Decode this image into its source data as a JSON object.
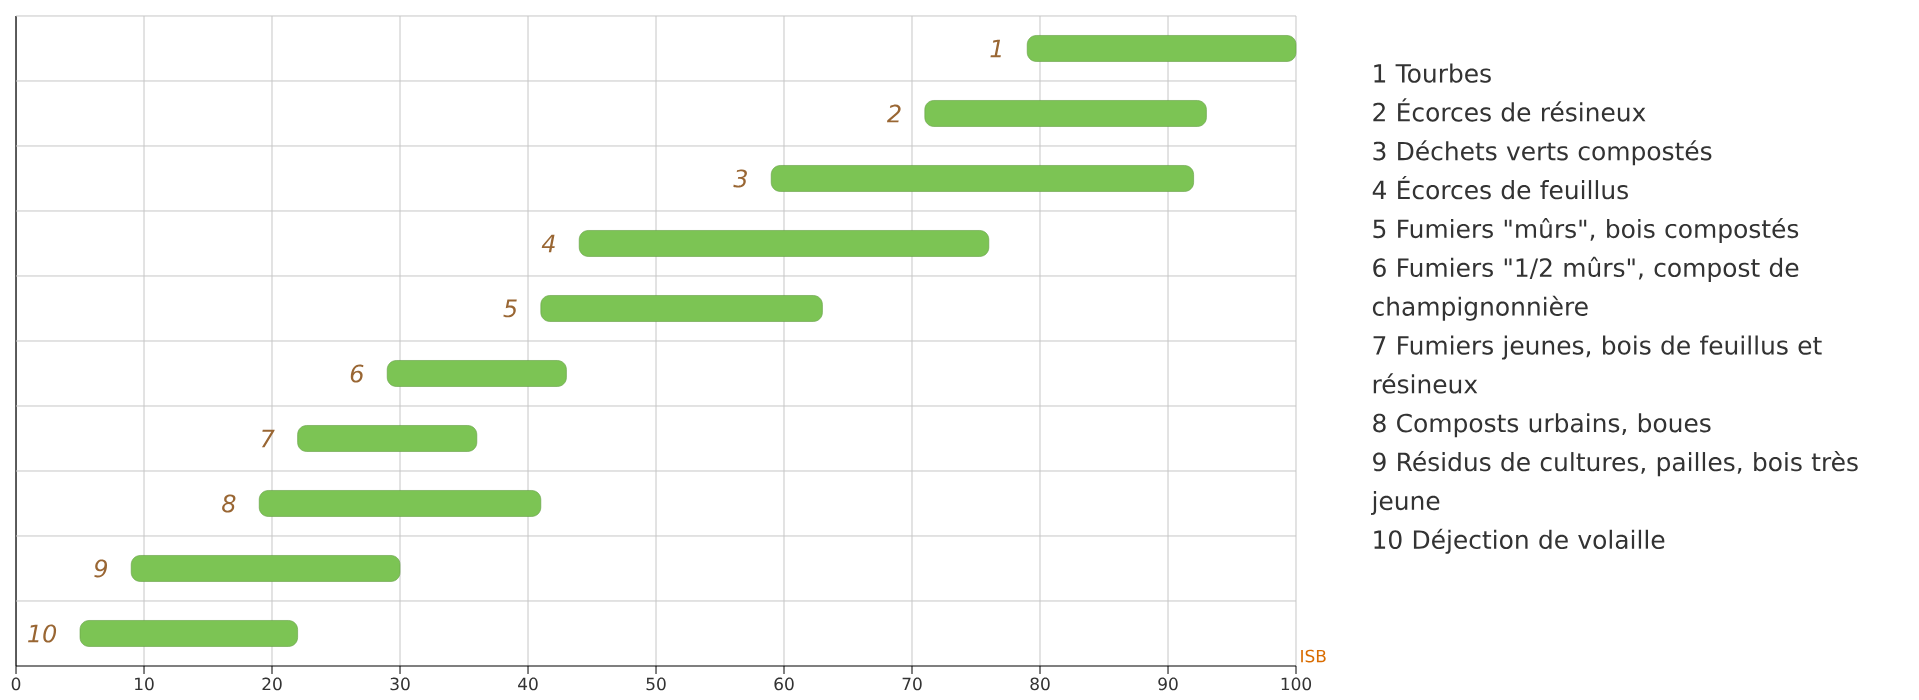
{
  "chart_data": {
    "type": "bar",
    "orientation": "horizontal",
    "categories": [
      "1",
      "2",
      "3",
      "4",
      "5",
      "6",
      "7",
      "8",
      "9",
      "10"
    ],
    "base": [
      79,
      71,
      59,
      44,
      41,
      29,
      22,
      19,
      9,
      5
    ],
    "values": [
      21,
      22,
      33,
      32,
      22,
      14,
      14,
      22,
      21,
      17
    ],
    "color": "#7cc454",
    "xlabel": "ISB",
    "xlim": [
      0,
      100
    ],
    "xticks": [
      0,
      10,
      20,
      30,
      40,
      50,
      60,
      70,
      80,
      90,
      100
    ],
    "grid": true,
    "annotations": [
      "1 Tourbes",
      "2 Écorces de résineux",
      "3 Déchets verts compostés",
      "4 Écorces de feuillus",
      "5 Fumiers \"mûrs\", bois compostés",
      "6 Fumiers \"1/2 mûrs\", compost de champignonnière",
      "7 Fumiers jeunes, bois de feuillus et résineux",
      "8 Composts urbains, boues",
      "9 Résidus de cultures, pailles, bois très jeune",
      "10 Déjection de volaille"
    ]
  }
}
